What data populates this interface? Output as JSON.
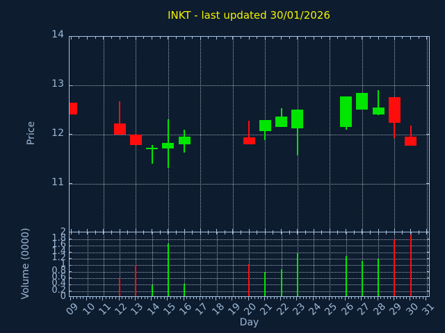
{
  "title": "INKT - last updated 30/01/2026",
  "colors": {
    "background": "#0e1c2f",
    "axis": "#a6c3e2",
    "text": "#9cb9d7",
    "title": "#f2f200",
    "grid": "#d0dae4",
    "up": "#00e600",
    "down": "#ff0d0d"
  },
  "price_axis": {
    "label": "Price",
    "tick_labels": [
      "14",
      "13",
      "12",
      "11"
    ],
    "tick_values": [
      14,
      13,
      12,
      11
    ]
  },
  "volume_axis": {
    "label": "Volume (0000)",
    "tick_labels": [
      "2",
      "1.8",
      "1.6",
      "1.4",
      "1.2",
      "1",
      "0.8",
      "0.6",
      "0.4",
      "0.2",
      "0"
    ],
    "tick_values": [
      2,
      1.8,
      1.6,
      1.4,
      1.2,
      1,
      0.8,
      0.6,
      0.4,
      0.2,
      0
    ]
  },
  "x_axis": {
    "label": "Day",
    "tick_labels": [
      "09",
      "10",
      "11",
      "12",
      "13",
      "14",
      "15",
      "16",
      "17",
      "18",
      "19",
      "20",
      "21",
      "22",
      "23",
      "24",
      "25",
      "26",
      "27",
      "28",
      "29",
      "30",
      "31"
    ],
    "tick_values": [
      9,
      10,
      11,
      12,
      13,
      14,
      15,
      16,
      17,
      18,
      19,
      20,
      21,
      22,
      23,
      24,
      25,
      26,
      27,
      28,
      29,
      30,
      31
    ]
  },
  "chart_data": [
    {
      "type": "candlestick",
      "title": "INKT - last updated 30/01/2026",
      "xlabel": "Day",
      "ylabel": "Price",
      "xlim": [
        8.9,
        31.3
      ],
      "ylim": [
        10.0,
        14.0
      ],
      "grid": true,
      "grid_x_days": [
        11,
        13,
        15,
        17,
        19,
        21,
        23,
        25,
        27,
        29,
        31
      ],
      "grid_y_prices": [
        13,
        12,
        11
      ],
      "data": [
        {
          "day": 9,
          "open": 12.65,
          "high": 12.65,
          "low": 12.4,
          "close": 12.4
        },
        {
          "day": 12,
          "open": 12.23,
          "high": 12.68,
          "low": 12.0,
          "close": 12.0
        },
        {
          "day": 13,
          "open": 12.0,
          "high": 12.0,
          "low": 11.79,
          "close": 11.79
        },
        {
          "day": 14,
          "open": 11.71,
          "high": 11.79,
          "low": 11.4,
          "close": 11.73
        },
        {
          "day": 15,
          "open": 11.72,
          "high": 12.31,
          "low": 11.32,
          "close": 11.83
        },
        {
          "day": 16,
          "open": 11.8,
          "high": 12.09,
          "low": 11.63,
          "close": 11.95
        },
        {
          "day": 20,
          "open": 11.94,
          "high": 12.28,
          "low": 11.8,
          "close": 11.8
        },
        {
          "day": 21,
          "open": 12.07,
          "high": 12.3,
          "low": 11.89,
          "close": 12.3
        },
        {
          "day": 22,
          "open": 12.15,
          "high": 12.54,
          "low": 12.15,
          "close": 12.37
        },
        {
          "day": 23,
          "open": 12.13,
          "high": 12.51,
          "low": 11.58,
          "close": 12.51
        },
        {
          "day": 26,
          "open": 12.15,
          "high": 12.77,
          "low": 12.09,
          "close": 12.77
        },
        {
          "day": 27,
          "open": 12.51,
          "high": 12.85,
          "low": 12.51,
          "close": 12.85
        },
        {
          "day": 28,
          "open": 12.41,
          "high": 12.9,
          "low": 12.39,
          "close": 12.55
        },
        {
          "day": 29,
          "open": 12.76,
          "high": 12.76,
          "low": 11.92,
          "close": 12.24
        },
        {
          "day": 30,
          "open": 11.96,
          "high": 12.18,
          "low": 11.77,
          "close": 11.77
        }
      ]
    },
    {
      "type": "bar",
      "xlabel": "Day",
      "ylabel": "Volume (0000)",
      "xlim": [
        8.9,
        31.3
      ],
      "ylim": [
        0,
        2
      ],
      "grid": true,
      "data": [
        {
          "day": 12,
          "volume": 0.6
        },
        {
          "day": 13,
          "volume": 1.0
        },
        {
          "day": 14,
          "volume": 0.39
        },
        {
          "day": 15,
          "volume": 1.67
        },
        {
          "day": 16,
          "volume": 0.43
        },
        {
          "day": 20,
          "volume": 1.03
        },
        {
          "day": 21,
          "volume": 0.78
        },
        {
          "day": 22,
          "volume": 0.88
        },
        {
          "day": 23,
          "volume": 1.37
        },
        {
          "day": 26,
          "volume": 1.29
        },
        {
          "day": 27,
          "volume": 1.14
        },
        {
          "day": 28,
          "volume": 1.2
        },
        {
          "day": 29,
          "volume": 1.8
        },
        {
          "day": 30,
          "volume": 1.93
        }
      ]
    }
  ]
}
